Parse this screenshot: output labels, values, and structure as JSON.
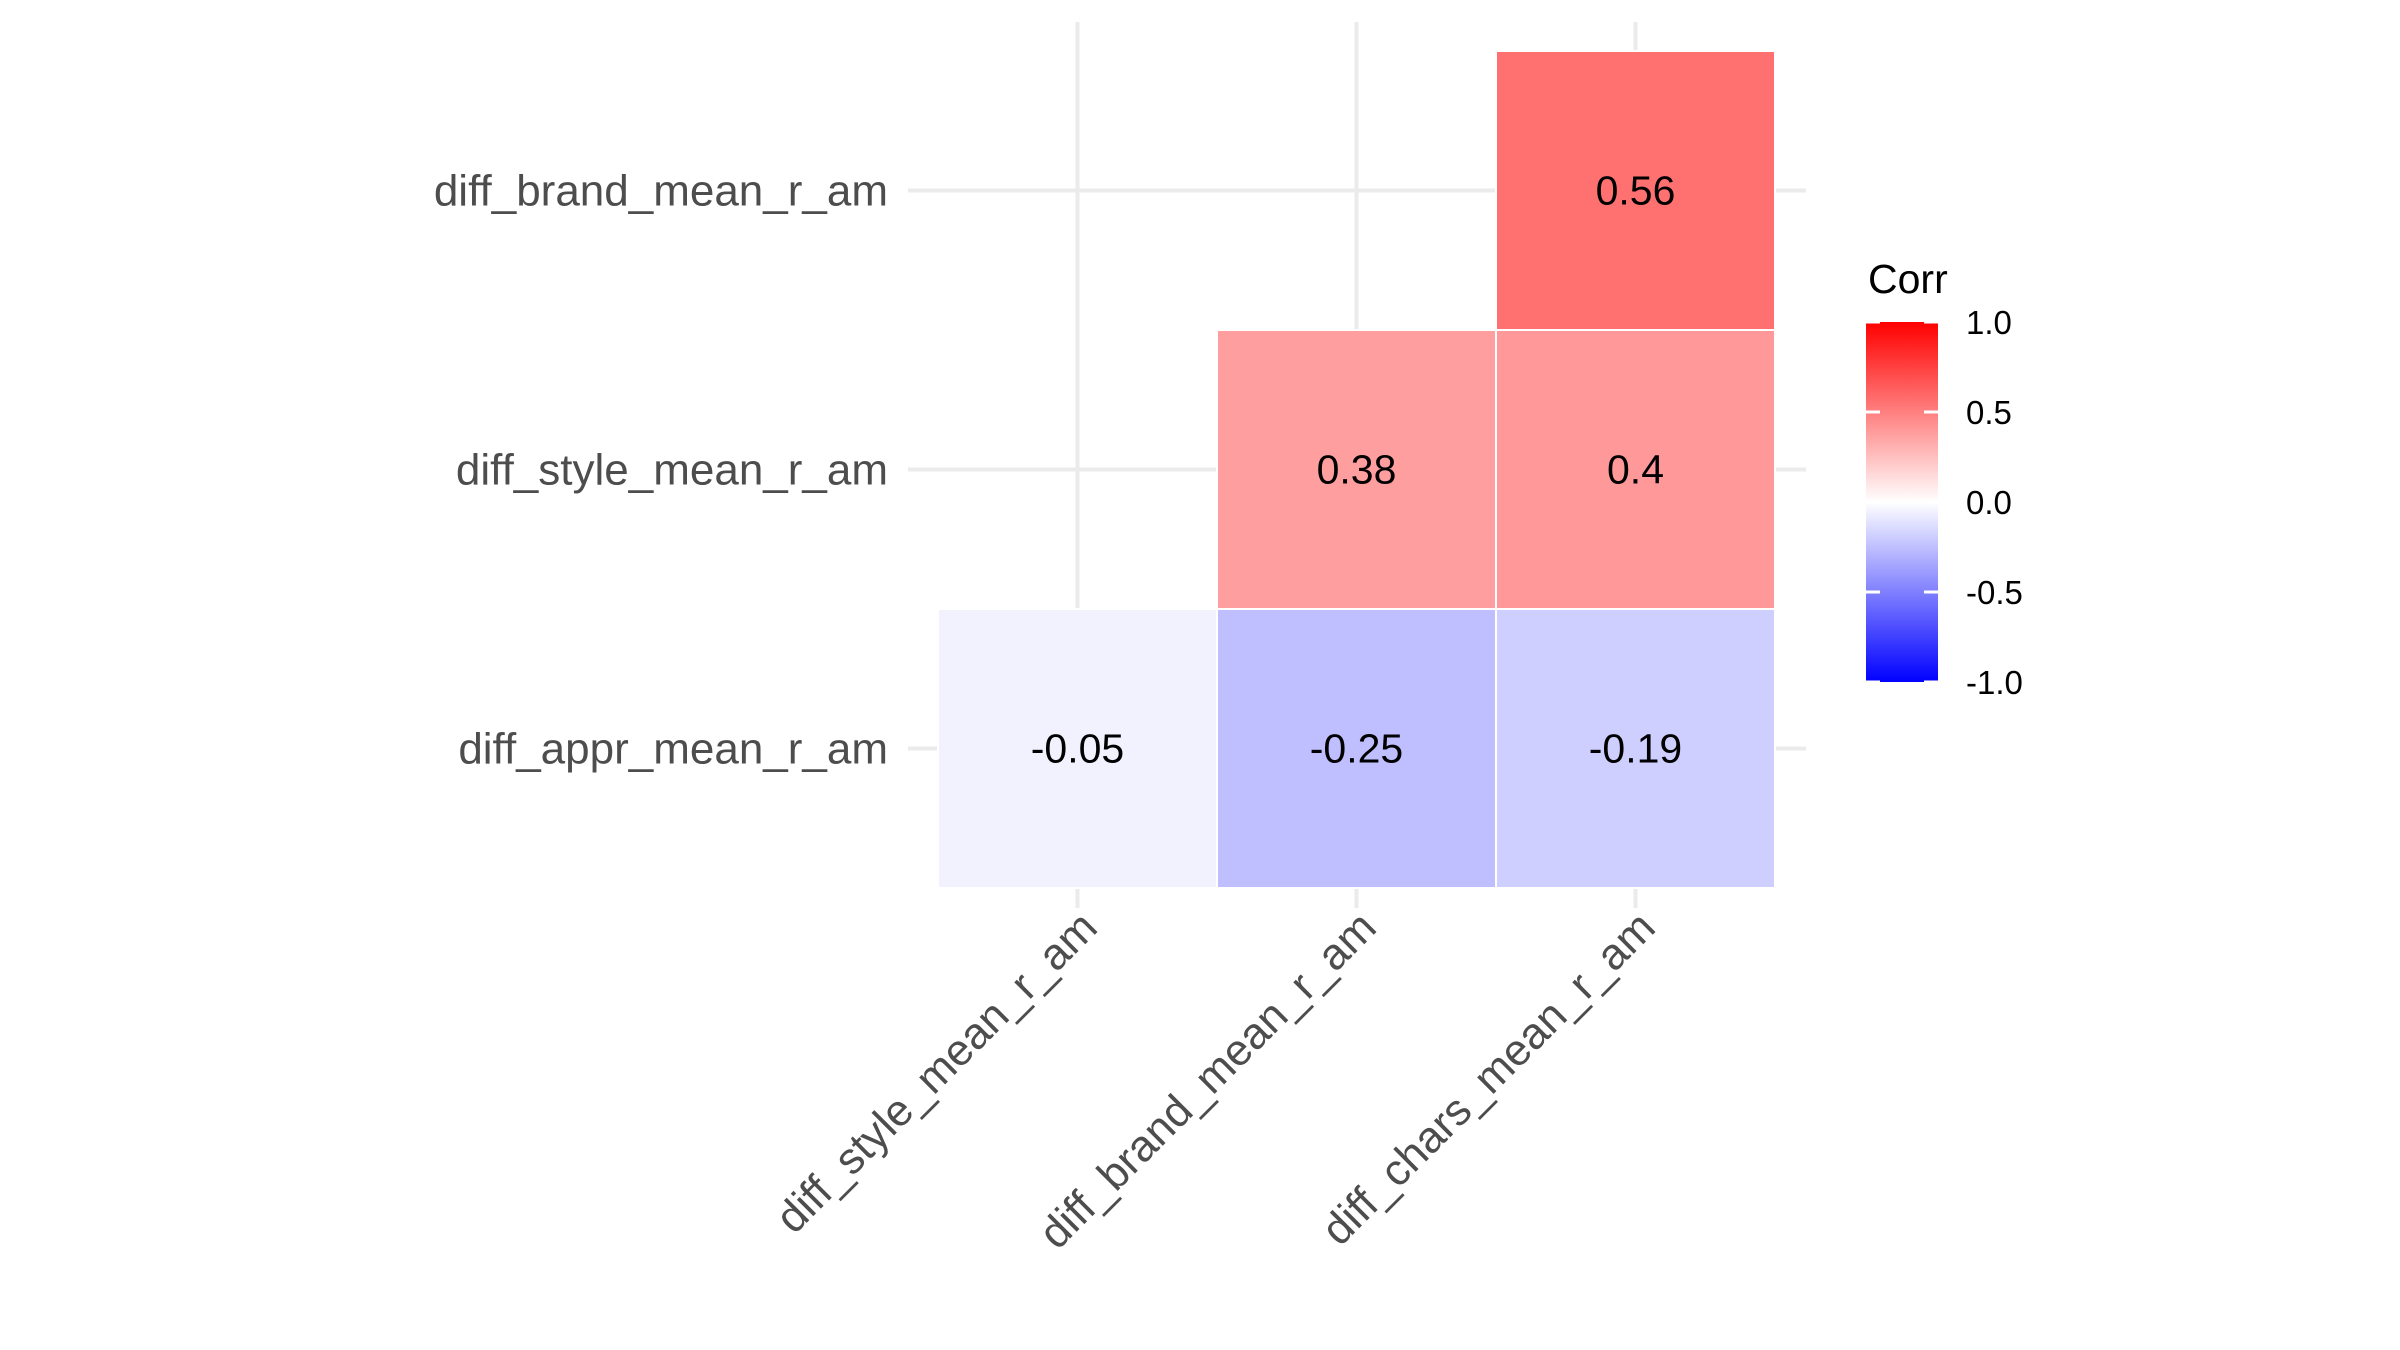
{
  "chart_data": {
    "type": "heatmap",
    "title": "",
    "xlabel": "",
    "ylabel": "",
    "x_categories": [
      "diff_style_mean_r_am",
      "diff_brand_mean_r_am",
      "diff_chars_mean_r_am"
    ],
    "y_categories": [
      "diff_appr_mean_r_am",
      "diff_style_mean_r_am",
      "diff_brand_mean_r_am"
    ],
    "cells": [
      {
        "x": "diff_style_mean_r_am",
        "y": "diff_appr_mean_r_am",
        "value": -0.05,
        "label": "-0.05"
      },
      {
        "x": "diff_brand_mean_r_am",
        "y": "diff_appr_mean_r_am",
        "value": -0.25,
        "label": "-0.25"
      },
      {
        "x": "diff_chars_mean_r_am",
        "y": "diff_appr_mean_r_am",
        "value": -0.19,
        "label": "-0.19"
      },
      {
        "x": "diff_brand_mean_r_am",
        "y": "diff_style_mean_r_am",
        "value": 0.38,
        "label": "0.38"
      },
      {
        "x": "diff_chars_mean_r_am",
        "y": "diff_style_mean_r_am",
        "value": 0.4,
        "label": "0.4"
      },
      {
        "x": "diff_chars_mean_r_am",
        "y": "diff_brand_mean_r_am",
        "value": 0.56,
        "label": "0.56"
      }
    ],
    "legend": {
      "title": "Corr",
      "range": [
        -1,
        1
      ],
      "ticks": [
        1.0,
        0.5,
        0.0,
        -0.5,
        -1.0
      ],
      "tick_labels": [
        "1.0",
        "0.5",
        "0.0",
        "-0.5",
        "-1.0"
      ],
      "low_color": "#0000ff",
      "mid_color": "#ffffff",
      "high_color": "#ff0000",
      "placement": "right"
    },
    "grid": true
  }
}
